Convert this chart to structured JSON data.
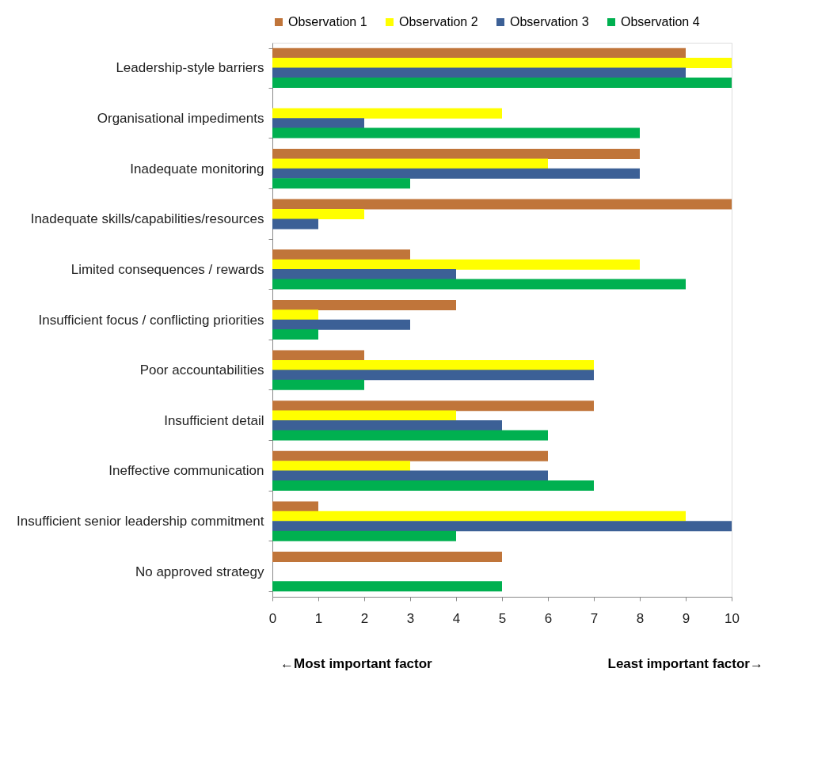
{
  "chart_data": {
    "type": "bar",
    "orientation": "horizontal",
    "legend": "top",
    "grid": false,
    "categories": [
      "Leadership-style barriers",
      "Organisational impediments",
      "Inadequate monitoring",
      "Inadequate skills/capabilities/resources",
      "Limited consequences / rewards",
      "Insufficient focus / conflicting priorities",
      "Poor accountabilities",
      "Insufficient detail",
      "Ineffective communication",
      "Insufficient senior leadership commitment",
      "No approved strategy"
    ],
    "series": [
      {
        "name": "Observation 1",
        "color": "#c0753a",
        "values": [
          9,
          null,
          8,
          10,
          3,
          4,
          2,
          7,
          6,
          1,
          5
        ]
      },
      {
        "name": "Observation 2",
        "color": "#ffff00",
        "values": [
          10,
          5,
          6,
          2,
          8,
          1,
          7,
          4,
          3,
          9,
          null
        ]
      },
      {
        "name": "Observation 3",
        "color": "#3c6096",
        "values": [
          9,
          2,
          8,
          1,
          4,
          3,
          7,
          5,
          6,
          10,
          null
        ]
      },
      {
        "name": "Observation 4",
        "color": "#00b050",
        "values": [
          10,
          8,
          3,
          null,
          9,
          1,
          2,
          6,
          7,
          4,
          5
        ]
      }
    ],
    "xlim": [
      0,
      10
    ],
    "xticks": [
      0,
      1,
      2,
      3,
      4,
      5,
      6,
      7,
      8,
      9,
      10
    ],
    "annotations": [
      "←Most important factor",
      "Least important factor→"
    ]
  }
}
